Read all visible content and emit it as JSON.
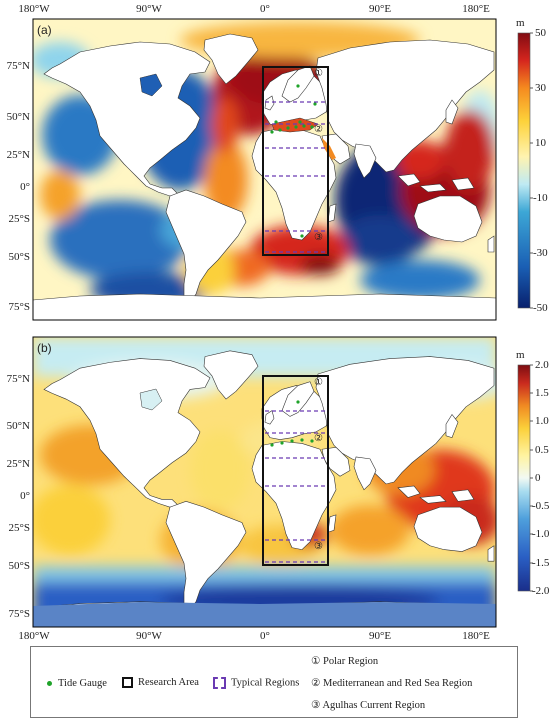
{
  "panels": [
    {
      "label": "(a)",
      "unit": "m",
      "colorbar_ticks": [
        "50",
        "30",
        "10",
        "-10",
        "-30",
        "-50"
      ],
      "colorbar_range": [
        -50,
        50
      ],
      "colors": [
        "#08206d",
        "#1a5fb4",
        "#3da7d6",
        "#bfeaf3",
        "#fff9c4",
        "#fdd23a",
        "#f58a1f",
        "#d5261e",
        "#820b12"
      ]
    },
    {
      "label": "(b)",
      "unit": "m",
      "colorbar_ticks": [
        "2.0",
        "1.5",
        "1.0",
        "0.5",
        "0",
        "-0.5",
        "-1.0",
        "-1.5",
        "-2.0"
      ],
      "colorbar_range": [
        -2.0,
        2.0
      ],
      "colors": [
        "#1a2e8a",
        "#2a5fc4",
        "#4fa0dc",
        "#a8dcef",
        "#f2f9f3",
        "#fff3a0",
        "#fbd03a",
        "#f08a22",
        "#c92a1e",
        "#7d0d12"
      ]
    }
  ],
  "lat_labels": [
    "75°N",
    "50°N",
    "25°N",
    "0°",
    "25°S",
    "50°S",
    "75°S"
  ],
  "lon_labels": [
    "180°W",
    "90°W",
    "0°",
    "90°E",
    "180°E"
  ],
  "regions": [
    "①",
    "②",
    "③"
  ],
  "legend": {
    "tide_gauge": "Tide Gauge",
    "research_area": "Research Area",
    "typical_regions": "Typical Regions",
    "polar_region": "① Polar Region",
    "med_region": "② Mediterranean and Red Sea Region",
    "agulhas_region": "③ Agulhas Current Region"
  }
}
